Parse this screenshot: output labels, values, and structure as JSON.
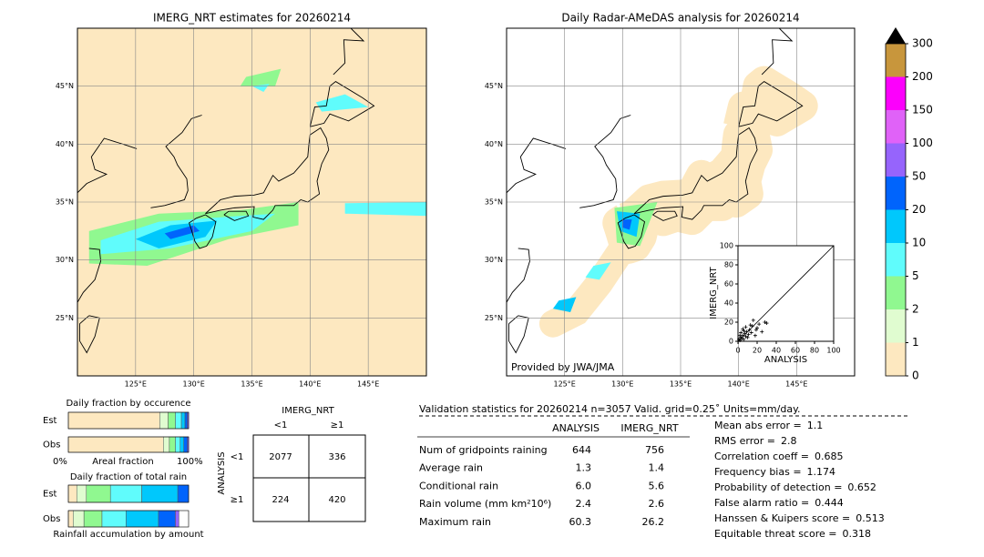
{
  "left_map": {
    "title": "IMERG_NRT estimates for 20260214",
    "xlim": [
      120,
      150
    ],
    "ylim": [
      20,
      50
    ],
    "xticks": [
      {
        "value": 125,
        "label": "125°E"
      },
      {
        "value": 130,
        "label": "130°E"
      },
      {
        "value": 135,
        "label": "135°E"
      },
      {
        "value": 140,
        "label": "140°E"
      },
      {
        "value": 145,
        "label": "145°E"
      }
    ],
    "yticks": [
      {
        "value": 45,
        "label": "45°N"
      },
      {
        "value": 40,
        "label": "40°N"
      },
      {
        "value": 35,
        "label": "35°N"
      },
      {
        "value": 30,
        "label": "30°N"
      },
      {
        "value": 25,
        "label": "25°N"
      }
    ]
  },
  "right_map": {
    "title": "Daily Radar-AMeDAS analysis for 20260214",
    "credit": "Provided by JWA/JMA",
    "xlim": [
      120,
      150
    ],
    "ylim": [
      20,
      50
    ],
    "xticks": [
      {
        "value": 125,
        "label": "125°E"
      },
      {
        "value": 130,
        "label": "130°E"
      },
      {
        "value": 135,
        "label": "135°E"
      },
      {
        "value": 140,
        "label": "140°E"
      },
      {
        "value": 145,
        "label": "145°E"
      }
    ],
    "yticks": [
      {
        "value": 45,
        "label": "45°N"
      },
      {
        "value": 40,
        "label": "40°N"
      },
      {
        "value": 35,
        "label": "35°N"
      },
      {
        "value": 30,
        "label": "30°N"
      },
      {
        "value": 25,
        "label": "25°N"
      }
    ]
  },
  "colorbar": {
    "ticks": [
      0,
      1,
      2,
      5,
      10,
      20,
      50,
      100,
      150,
      200,
      300
    ],
    "colors": [
      "#fde8c0",
      "#e0fcd0",
      "#90f890",
      "#60fcfc",
      "#00c8fc",
      "#0064fc",
      "#9664fc",
      "#e062f8",
      "#fc00fc",
      "#c8963c"
    ]
  },
  "scatter": {
    "type": "scatter",
    "xlabel": "ANALYSIS",
    "ylabel": "IMERG_NRT",
    "xlim": [
      0,
      100
    ],
    "ylim": [
      0,
      100
    ],
    "xticks": [
      0,
      20,
      40,
      60,
      80,
      100
    ],
    "yticks": [
      0,
      20,
      40,
      60,
      80,
      100
    ],
    "x": [
      1,
      2,
      3,
      4,
      5,
      6,
      7,
      8,
      9,
      10,
      12,
      14,
      15,
      18,
      20,
      22,
      25,
      28,
      30,
      3,
      5,
      8,
      11,
      16,
      2,
      6,
      13,
      19
    ],
    "y": [
      2,
      1,
      4,
      3,
      6,
      2,
      8,
      5,
      10,
      4,
      12,
      9,
      16,
      6,
      14,
      18,
      10,
      20,
      19,
      9,
      13,
      15,
      7,
      22,
      6,
      11,
      17,
      12
    ]
  },
  "occurrence": {
    "title": "Daily fraction by occurence",
    "rows": [
      "Est",
      "Obs"
    ],
    "xlabel": "Areal fraction",
    "left": "0%",
    "right": "100%",
    "colors": [
      "#fde8c0",
      "#e0fcd0",
      "#90f890",
      "#60fcfc",
      "#00c8fc",
      "#0064fc",
      "#9664fc"
    ],
    "values": [
      [
        0.76,
        0.07,
        0.06,
        0.05,
        0.03,
        0.02,
        0.01
      ],
      [
        0.79,
        0.05,
        0.05,
        0.04,
        0.03,
        0.03,
        0.01
      ]
    ]
  },
  "total_rain": {
    "title": "Daily fraction of total rain",
    "rows": [
      "Est",
      "Obs"
    ],
    "xlabel": "Rainfall accumulation by amount",
    "colors": [
      "#fde8c0",
      "#e0fcd0",
      "#90f890",
      "#60fcfc",
      "#00c8fc",
      "#0064fc",
      "#9664fc"
    ],
    "values": [
      [
        0.07,
        0.08,
        0.2,
        0.26,
        0.3,
        0.09,
        0
      ],
      [
        0.04,
        0.09,
        0.15,
        0.2,
        0.27,
        0.14,
        0.03
      ]
    ]
  },
  "contingency": {
    "title": "IMERG_NRT",
    "cols": [
      "<1",
      "≥1"
    ],
    "row_title": "ANALYSIS",
    "rows": [
      "<1",
      "≥1"
    ],
    "cells": [
      [
        "2077",
        "336"
      ],
      [
        "224",
        "420"
      ]
    ]
  },
  "validation": {
    "title": "Validation statistics for 20260214  n=3057 Valid. grid=0.25˚ Units=mm/day.",
    "headers": [
      "ANALYSIS",
      "IMERG_NRT"
    ],
    "rows": [
      [
        "Num of gridpoints raining",
        "644",
        "756"
      ],
      [
        "Average rain",
        "1.3",
        "1.4"
      ],
      [
        "Conditional rain",
        "6.0",
        "5.6"
      ],
      [
        "Rain volume (mm km²10⁶)",
        "2.4",
        "2.6"
      ],
      [
        "Maximum rain",
        "60.3",
        "26.2"
      ]
    ],
    "scores": [
      [
        "Mean abs error =",
        "1.1"
      ],
      [
        "RMS error =",
        "2.8"
      ],
      [
        "Correlation coeff =",
        "0.685"
      ],
      [
        "Frequency bias =",
        "1.174"
      ],
      [
        "Probability of detection =",
        "0.652"
      ],
      [
        "False alarm ratio =",
        "0.444"
      ],
      [
        "Hanssen & Kuipers score =",
        "0.513"
      ],
      [
        "Equitable threat score =",
        "0.318"
      ]
    ]
  }
}
